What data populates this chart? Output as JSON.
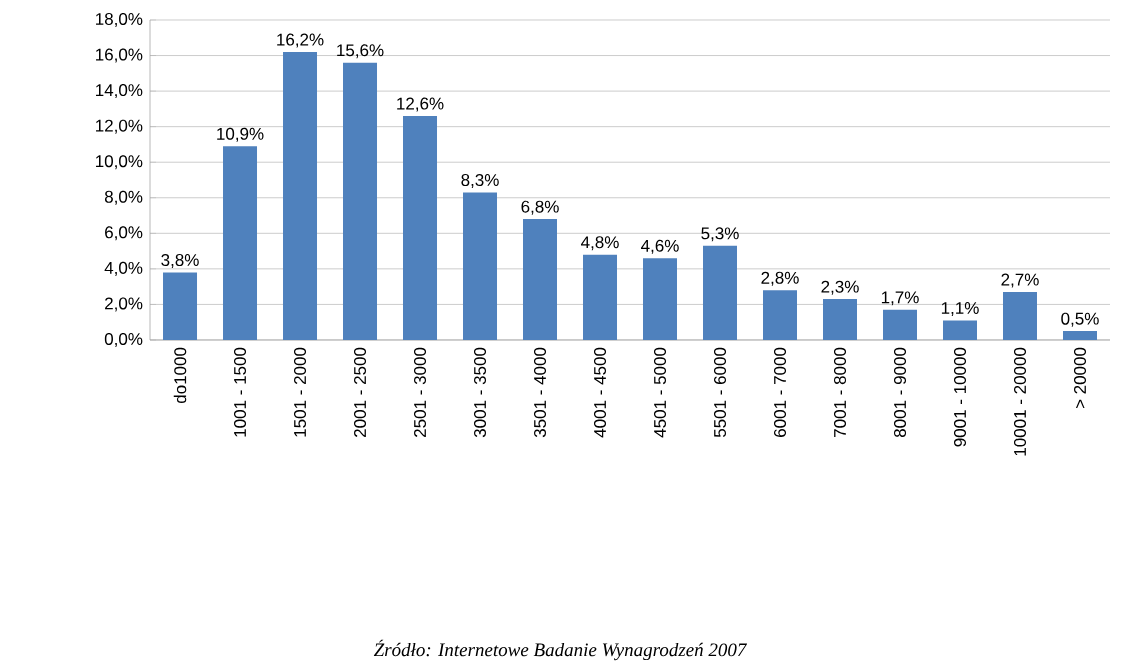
{
  "chart_data": {
    "type": "bar",
    "categories": [
      "do1000",
      "1001 - 1500",
      "1501 - 2000",
      "2001 - 2500",
      "2501 - 3000",
      "3001 - 3500",
      "3501 - 4000",
      "4001 - 4500",
      "4501 - 5000",
      "5501 - 6000",
      "6001 - 7000",
      "7001 - 8000",
      "8001 - 9000",
      "9001 - 10000",
      "10001 - 20000",
      "> 20000"
    ],
    "values": [
      3.8,
      10.9,
      16.2,
      15.6,
      12.6,
      8.3,
      6.8,
      4.8,
      4.6,
      5.3,
      2.8,
      2.3,
      1.7,
      1.1,
      2.7,
      0.5
    ],
    "value_labels": [
      "3,8%",
      "10,9%",
      "16,2%",
      "15,6%",
      "12,6%",
      "8,3%",
      "6,8%",
      "4,8%",
      "4,6%",
      "5,3%",
      "2,8%",
      "2,3%",
      "1,7%",
      "1,1%",
      "2,7%",
      "0,5%"
    ],
    "color": "#4f81bd",
    "ylim": [
      0,
      18
    ],
    "yticks": [
      {
        "value": 0,
        "label": "0,0%"
      },
      {
        "value": 2,
        "label": "2,0%"
      },
      {
        "value": 4,
        "label": "4,0%"
      },
      {
        "value": 6,
        "label": "6,0%"
      },
      {
        "value": 8,
        "label": "8,0%"
      },
      {
        "value": 10,
        "label": "10,0%"
      },
      {
        "value": 12,
        "label": "12,0%"
      },
      {
        "value": 14,
        "label": "14,0%"
      },
      {
        "value": 16,
        "label": "16,0%"
      },
      {
        "value": 18,
        "label": "18,0%"
      }
    ],
    "grid": "y",
    "annotations": [
      "Źródło: Internetowe Badanie Wynagrodzeń 2007"
    ]
  }
}
